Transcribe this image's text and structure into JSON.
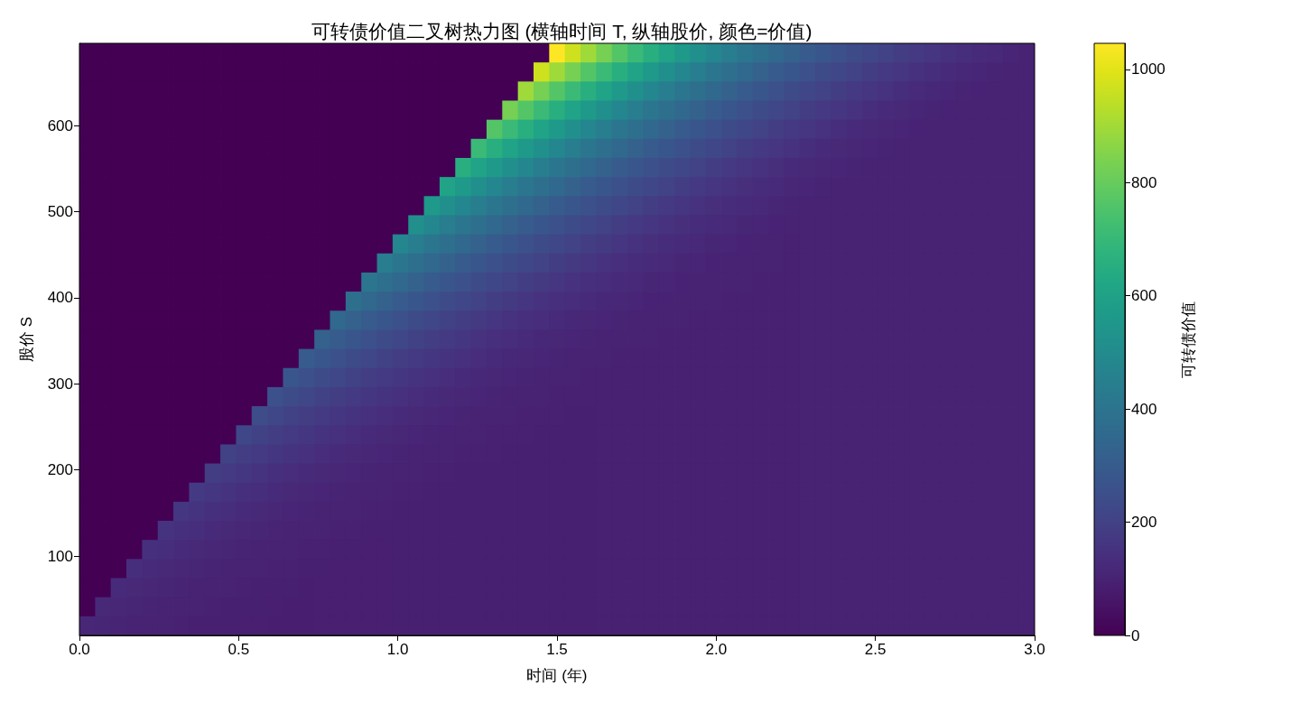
{
  "chart_data": {
    "type": "heatmap",
    "title": "可转债价值二叉树热力图 (横轴时间 T, 纵轴股价, 颜色=价值)",
    "xlabel": "时间 (年)",
    "ylabel": "股价 S",
    "clabel": "可转债价值",
    "xlim": [
      0,
      3
    ],
    "xticks": [
      {
        "value": 0,
        "label": "0.0"
      },
      0.5,
      {
        "value": 1,
        "label": "1.0"
      },
      1.5,
      {
        "value": 2,
        "label": "2.0"
      },
      2.5,
      {
        "value": 3,
        "label": "3.0"
      }
    ],
    "ylim": [
      7.8,
      695.4
    ],
    "yticks": [
      100,
      200,
      300,
      400,
      500,
      600
    ],
    "clim": [
      0,
      1046
    ],
    "cticks": [
      0,
      200,
      400,
      600,
      800,
      1000
    ],
    "cells": [
      [
        0,
        0,
        0,
        0,
        0,
        0,
        0,
        0,
        0,
        0,
        0,
        0,
        0,
        0,
        0,
        0,
        0,
        0,
        0,
        0,
        0,
        0,
        0,
        0,
        0,
        0,
        0,
        0,
        0,
        0,
        1046,
        968,
        895,
        827,
        765,
        708,
        654,
        605,
        560,
        517,
        478,
        442,
        409,
        378,
        350,
        324,
        299,
        277,
        256,
        237,
        219,
        202,
        187,
        173,
        160,
        148,
        137,
        128,
        117,
        108,
        100
      ],
      [
        0,
        0,
        0,
        0,
        0,
        0,
        0,
        0,
        0,
        0,
        0,
        0,
        0,
        0,
        0,
        0,
        0,
        0,
        0,
        0,
        0,
        0,
        0,
        0,
        0,
        0,
        0,
        0,
        0,
        968,
        895,
        827,
        765,
        708,
        654,
        605,
        560,
        517,
        478,
        442,
        409,
        378,
        350,
        324,
        299,
        277,
        256,
        237,
        219,
        202,
        187,
        173,
        160,
        148,
        137,
        128,
        119,
        112,
        104,
        100,
        100
      ],
      [
        0,
        0,
        0,
        0,
        0,
        0,
        0,
        0,
        0,
        0,
        0,
        0,
        0,
        0,
        0,
        0,
        0,
        0,
        0,
        0,
        0,
        0,
        0,
        0,
        0,
        0,
        0,
        0,
        895,
        827,
        765,
        708,
        654,
        605,
        560,
        517,
        478,
        442,
        409,
        378,
        350,
        324,
        299,
        277,
        256,
        237,
        219,
        202,
        187,
        173,
        160,
        149,
        138,
        128,
        119,
        112,
        106,
        103,
        100,
        100,
        100
      ],
      [
        0,
        0,
        0,
        0,
        0,
        0,
        0,
        0,
        0,
        0,
        0,
        0,
        0,
        0,
        0,
        0,
        0,
        0,
        0,
        0,
        0,
        0,
        0,
        0,
        0,
        0,
        0,
        827,
        765,
        708,
        654,
        605,
        560,
        517,
        478,
        442,
        409,
        378,
        350,
        324,
        299,
        277,
        256,
        237,
        219,
        202,
        187,
        173,
        160,
        149,
        138,
        129,
        121,
        112,
        106,
        103,
        101,
        100,
        100,
        100,
        100
      ],
      [
        0,
        0,
        0,
        0,
        0,
        0,
        0,
        0,
        0,
        0,
        0,
        0,
        0,
        0,
        0,
        0,
        0,
        0,
        0,
        0,
        0,
        0,
        0,
        0,
        0,
        0,
        765,
        708,
        654,
        605,
        560,
        517,
        478,
        442,
        409,
        378,
        350,
        324,
        299,
        277,
        256,
        237,
        219,
        203,
        187,
        173,
        160,
        149,
        138,
        129,
        121,
        114,
        109,
        103,
        101,
        100,
        99,
        99,
        100,
        100,
        100
      ],
      [
        0,
        0,
        0,
        0,
        0,
        0,
        0,
        0,
        0,
        0,
        0,
        0,
        0,
        0,
        0,
        0,
        0,
        0,
        0,
        0,
        0,
        0,
        0,
        0,
        0,
        708,
        654,
        605,
        560,
        517,
        478,
        442,
        409,
        378,
        350,
        324,
        299,
        277,
        256,
        237,
        219,
        203,
        187,
        174,
        161,
        149,
        138,
        129,
        121,
        114,
        109,
        105,
        102,
        100,
        99,
        99,
        99,
        99,
        100,
        100,
        100
      ],
      [
        0,
        0,
        0,
        0,
        0,
        0,
        0,
        0,
        0,
        0,
        0,
        0,
        0,
        0,
        0,
        0,
        0,
        0,
        0,
        0,
        0,
        0,
        0,
        0,
        654,
        605,
        560,
        517,
        478,
        442,
        409,
        378,
        350,
        324,
        299,
        277,
        256,
        237,
        219,
        203,
        187,
        174,
        161,
        150,
        140,
        129,
        121,
        114,
        109,
        105,
        102,
        100,
        99,
        98,
        99,
        99,
        99,
        99,
        100,
        100,
        100
      ],
      [
        0,
        0,
        0,
        0,
        0,
        0,
        0,
        0,
        0,
        0,
        0,
        0,
        0,
        0,
        0,
        0,
        0,
        0,
        0,
        0,
        0,
        0,
        0,
        605,
        560,
        517,
        478,
        442,
        409,
        378,
        350,
        324,
        299,
        277,
        256,
        237,
        219,
        203,
        187,
        174,
        161,
        150,
        140,
        131,
        123,
        114,
        109,
        105,
        102,
        100,
        99,
        98,
        98,
        98,
        99,
        99,
        99,
        99,
        100,
        100,
        100
      ],
      [
        0,
        0,
        0,
        0,
        0,
        0,
        0,
        0,
        0,
        0,
        0,
        0,
        0,
        0,
        0,
        0,
        0,
        0,
        0,
        0,
        0,
        0,
        560,
        517,
        478,
        442,
        409,
        378,
        350,
        324,
        299,
        277,
        256,
        237,
        219,
        203,
        187,
        174,
        161,
        150,
        140,
        131,
        123,
        117,
        111,
        105,
        102,
        100,
        99,
        97,
        98,
        98,
        98,
        98,
        99,
        99,
        99,
        99,
        100,
        100,
        100
      ],
      [
        0,
        0,
        0,
        0,
        0,
        0,
        0,
        0,
        0,
        0,
        0,
        0,
        0,
        0,
        0,
        0,
        0,
        0,
        0,
        0,
        0,
        517,
        478,
        442,
        409,
        378,
        350,
        324,
        299,
        277,
        256,
        237,
        219,
        203,
        188,
        174,
        161,
        150,
        140,
        131,
        123,
        117,
        111,
        107,
        103,
        100,
        99,
        97,
        97,
        97,
        98,
        98,
        98,
        98,
        99,
        99,
        99,
        99,
        100,
        100,
        100
      ],
      [
        0,
        0,
        0,
        0,
        0,
        0,
        0,
        0,
        0,
        0,
        0,
        0,
        0,
        0,
        0,
        0,
        0,
        0,
        0,
        0,
        478,
        442,
        409,
        378,
        350,
        324,
        299,
        277,
        256,
        237,
        219,
        203,
        188,
        175,
        162,
        150,
        140,
        131,
        123,
        117,
        111,
        107,
        103,
        101,
        99,
        96,
        97,
        97,
        97,
        97,
        98,
        98,
        98,
        98,
        99,
        99,
        99,
        99,
        100,
        100,
        100
      ],
      [
        0,
        0,
        0,
        0,
        0,
        0,
        0,
        0,
        0,
        0,
        0,
        0,
        0,
        0,
        0,
        0,
        0,
        0,
        0,
        442,
        409,
        378,
        350,
        324,
        299,
        277,
        256,
        237,
        219,
        203,
        188,
        175,
        162,
        151,
        142,
        131,
        123,
        117,
        111,
        107,
        103,
        101,
        99,
        98,
        97,
        96,
        97,
        97,
        97,
        97,
        98,
        98,
        98,
        98,
        99,
        99,
        99,
        99,
        100,
        100,
        100
      ],
      [
        0,
        0,
        0,
        0,
        0,
        0,
        0,
        0,
        0,
        0,
        0,
        0,
        0,
        0,
        0,
        0,
        0,
        0,
        409,
        378,
        350,
        324,
        299,
        277,
        256,
        237,
        219,
        203,
        188,
        175,
        162,
        151,
        142,
        133,
        125,
        117,
        111,
        107,
        103,
        101,
        99,
        98,
        97,
        96,
        96,
        96,
        97,
        97,
        97,
        97,
        98,
        98,
        98,
        98,
        99,
        99,
        99,
        99,
        100,
        100,
        100
      ],
      [
        0,
        0,
        0,
        0,
        0,
        0,
        0,
        0,
        0,
        0,
        0,
        0,
        0,
        0,
        0,
        0,
        0,
        378,
        350,
        324,
        299,
        277,
        256,
        237,
        220,
        203,
        188,
        175,
        162,
        151,
        142,
        133,
        125,
        119,
        113,
        107,
        103,
        101,
        99,
        98,
        97,
        96,
        96,
        96,
        96,
        96,
        97,
        97,
        97,
        97,
        98,
        98,
        98,
        98,
        99,
        99,
        99,
        99,
        100,
        100,
        100
      ],
      [
        0,
        0,
        0,
        0,
        0,
        0,
        0,
        0,
        0,
        0,
        0,
        0,
        0,
        0,
        0,
        0,
        350,
        324,
        299,
        277,
        256,
        237,
        220,
        204,
        189,
        175,
        162,
        151,
        142,
        133,
        125,
        119,
        113,
        108,
        105,
        101,
        99,
        98,
        97,
        95,
        95,
        96,
        96,
        96,
        96,
        96,
        97,
        97,
        97,
        97,
        98,
        98,
        98,
        98,
        99,
        99,
        99,
        99,
        100,
        100,
        100
      ],
      [
        0,
        0,
        0,
        0,
        0,
        0,
        0,
        0,
        0,
        0,
        0,
        0,
        0,
        0,
        0,
        324,
        299,
        277,
        256,
        237,
        220,
        204,
        189,
        176,
        164,
        151,
        142,
        133,
        125,
        119,
        113,
        108,
        105,
        102,
        99,
        98,
        97,
        95,
        95,
        95,
        95,
        96,
        96,
        96,
        96,
        96,
        97,
        97,
        97,
        97,
        98,
        98,
        98,
        98,
        99,
        99,
        99,
        99,
        100,
        100,
        100
      ],
      [
        0,
        0,
        0,
        0,
        0,
        0,
        0,
        0,
        0,
        0,
        0,
        0,
        0,
        0,
        299,
        277,
        256,
        237,
        220,
        204,
        189,
        176,
        164,
        153,
        143,
        133,
        125,
        119,
        113,
        108,
        105,
        102,
        99,
        97,
        96,
        94,
        94,
        95,
        95,
        95,
        95,
        96,
        96,
        96,
        96,
        96,
        97,
        97,
        97,
        97,
        98,
        98,
        98,
        98,
        99,
        99,
        99,
        99,
        100,
        100,
        100
      ],
      [
        0,
        0,
        0,
        0,
        0,
        0,
        0,
        0,
        0,
        0,
        0,
        0,
        0,
        277,
        256,
        237,
        220,
        204,
        189,
        176,
        164,
        153,
        143,
        134,
        127,
        119,
        113,
        108,
        105,
        102,
        99,
        97,
        96,
        95,
        94,
        94,
        94,
        95,
        95,
        95,
        95,
        96,
        96,
        96,
        96,
        96,
        97,
        97,
        97,
        97,
        98,
        98,
        98,
        98,
        99,
        99,
        99,
        99,
        100,
        100,
        100
      ],
      [
        0,
        0,
        0,
        0,
        0,
        0,
        0,
        0,
        0,
        0,
        0,
        0,
        257,
        237,
        220,
        204,
        189,
        176,
        164,
        153,
        143,
        134,
        127,
        120,
        114,
        108,
        105,
        102,
        99,
        97,
        96,
        95,
        94,
        94,
        94,
        94,
        94,
        95,
        95,
        95,
        95,
        96,
        96,
        96,
        96,
        96,
        97,
        97,
        97,
        97,
        98,
        98,
        98,
        98,
        99,
        99,
        99,
        99,
        100,
        100,
        100
      ],
      [
        0,
        0,
        0,
        0,
        0,
        0,
        0,
        0,
        0,
        0,
        0,
        238,
        220,
        204,
        189,
        176,
        164,
        153,
        143,
        134,
        127,
        120,
        114,
        109,
        105,
        102,
        99,
        97,
        96,
        95,
        94,
        93,
        93,
        94,
        94,
        94,
        94,
        95,
        95,
        95,
        95,
        96,
        96,
        96,
        96,
        96,
        97,
        97,
        97,
        97,
        98,
        98,
        98,
        98,
        99,
        99,
        99,
        99,
        100,
        100,
        100
      ],
      [
        0,
        0,
        0,
        0,
        0,
        0,
        0,
        0,
        0,
        0,
        220,
        204,
        190,
        176,
        164,
        153,
        143,
        134,
        127,
        120,
        114,
        109,
        105,
        102,
        99,
        97,
        96,
        95,
        94,
        93,
        93,
        93,
        93,
        94,
        94,
        94,
        94,
        95,
        95,
        95,
        95,
        96,
        96,
        96,
        96,
        96,
        97,
        97,
        97,
        97,
        98,
        98,
        98,
        98,
        99,
        99,
        99,
        99,
        100,
        100,
        100
      ],
      [
        0,
        0,
        0,
        0,
        0,
        0,
        0,
        0,
        0,
        204,
        190,
        177,
        165,
        153,
        143,
        134,
        127,
        120,
        114,
        109,
        105,
        102,
        99,
        97,
        95,
        95,
        94,
        92,
        93,
        93,
        93,
        93,
        93,
        94,
        94,
        94,
        94,
        95,
        95,
        95,
        95,
        96,
        96,
        96,
        96,
        96,
        97,
        97,
        97,
        97,
        98,
        98,
        98,
        98,
        99,
        99,
        99,
        99,
        100,
        100,
        100
      ],
      [
        0,
        0,
        0,
        0,
        0,
        0,
        0,
        0,
        190,
        177,
        165,
        154,
        144,
        134,
        127,
        120,
        114,
        109,
        105,
        102,
        99,
        97,
        95,
        94,
        93,
        92,
        92,
        92,
        93,
        93,
        93,
        93,
        93,
        94,
        94,
        94,
        94,
        95,
        95,
        95,
        95,
        96,
        96,
        96,
        96,
        96,
        97,
        97,
        97,
        97,
        98,
        98,
        98,
        98,
        99,
        99,
        99,
        99,
        100,
        100,
        100
      ],
      [
        0,
        0,
        0,
        0,
        0,
        0,
        0,
        177,
        165,
        154,
        144,
        136,
        128,
        120,
        114,
        109,
        105,
        102,
        99,
        97,
        95,
        94,
        93,
        92,
        92,
        92,
        92,
        92,
        93,
        93,
        93,
        93,
        93,
        94,
        94,
        94,
        94,
        95,
        95,
        95,
        95,
        96,
        96,
        96,
        96,
        96,
        97,
        97,
        97,
        97,
        98,
        98,
        98,
        98,
        99,
        99,
        99,
        99,
        100,
        100,
        100
      ],
      [
        0,
        0,
        0,
        0,
        0,
        0,
        165,
        154,
        144,
        136,
        128,
        121,
        115,
        109,
        105,
        102,
        99,
        97,
        95,
        94,
        93,
        92,
        91,
        91,
        92,
        92,
        92,
        92,
        93,
        93,
        93,
        93,
        93,
        94,
        94,
        94,
        94,
        95,
        95,
        95,
        95,
        96,
        96,
        96,
        96,
        96,
        97,
        97,
        97,
        97,
        98,
        98,
        98,
        98,
        99,
        99,
        99,
        99,
        100,
        100,
        100
      ],
      [
        0,
        0,
        0,
        0,
        0,
        154,
        144,
        136,
        128,
        121,
        115,
        110,
        106,
        102,
        99,
        97,
        95,
        94,
        93,
        92,
        91,
        91,
        91,
        91,
        92,
        92,
        92,
        92,
        93,
        93,
        93,
        93,
        93,
        94,
        94,
        94,
        94,
        95,
        95,
        95,
        95,
        96,
        96,
        96,
        96,
        96,
        97,
        97,
        97,
        97,
        98,
        98,
        98,
        98,
        99,
        99,
        99,
        99,
        100,
        100,
        100
      ],
      [
        0,
        0,
        0,
        0,
        144,
        136,
        128,
        121,
        115,
        110,
        106,
        102,
        99,
        97,
        95,
        94,
        93,
        92,
        90,
        90,
        91,
        91,
        91,
        91,
        92,
        92,
        92,
        92,
        93,
        93,
        93,
        93,
        93,
        94,
        94,
        94,
        94,
        95,
        95,
        95,
        95,
        96,
        96,
        96,
        96,
        96,
        97,
        97,
        97,
        97,
        98,
        98,
        98,
        98,
        99,
        99,
        99,
        99,
        100,
        100,
        100
      ],
      [
        0,
        0,
        0,
        136,
        128,
        121,
        115,
        110,
        106,
        102,
        99,
        97,
        95,
        94,
        93,
        92,
        90,
        90,
        90,
        90,
        91,
        91,
        91,
        91,
        92,
        92,
        92,
        92,
        93,
        93,
        93,
        93,
        93,
        94,
        94,
        94,
        94,
        95,
        95,
        95,
        95,
        96,
        96,
        96,
        96,
        96,
        97,
        97,
        97,
        97,
        98,
        98,
        98,
        98,
        99,
        99,
        99,
        99,
        100,
        100,
        100
      ],
      [
        0,
        0,
        128,
        121,
        115,
        110,
        106,
        102,
        99,
        97,
        95,
        93,
        92,
        92,
        89,
        90,
        90,
        90,
        90,
        90,
        91,
        91,
        91,
        91,
        92,
        92,
        92,
        92,
        93,
        93,
        93,
        93,
        93,
        94,
        94,
        94,
        94,
        95,
        95,
        95,
        95,
        96,
        96,
        96,
        96,
        96,
        97,
        97,
        97,
        97,
        98,
        98,
        98,
        98,
        99,
        99,
        99,
        99,
        100,
        100,
        100
      ],
      [
        0,
        121,
        115,
        110,
        106,
        102,
        99,
        97,
        95,
        93,
        92,
        91,
        90,
        89,
        89,
        90,
        90,
        90,
        90,
        90,
        91,
        91,
        91,
        91,
        92,
        92,
        92,
        92,
        93,
        93,
        93,
        93,
        93,
        94,
        94,
        94,
        94,
        95,
        95,
        95,
        95,
        96,
        96,
        96,
        96,
        96,
        97,
        97,
        97,
        97,
        98,
        98,
        98,
        98,
        99,
        99,
        99,
        99,
        100,
        100,
        100
      ],
      [
        116,
        110,
        106,
        102,
        99,
        97,
        95,
        93,
        92,
        91,
        90,
        90,
        89,
        89,
        89,
        90,
        90,
        90,
        90,
        90,
        91,
        91,
        91,
        91,
        92,
        92,
        92,
        92,
        93,
        93,
        93,
        93,
        93,
        94,
        94,
        94,
        94,
        95,
        95,
        95,
        95,
        96,
        96,
        96,
        96,
        96,
        97,
        97,
        97,
        97,
        98,
        98,
        98,
        98,
        99,
        99,
        99,
        99,
        100,
        100,
        100
      ]
    ]
  }
}
